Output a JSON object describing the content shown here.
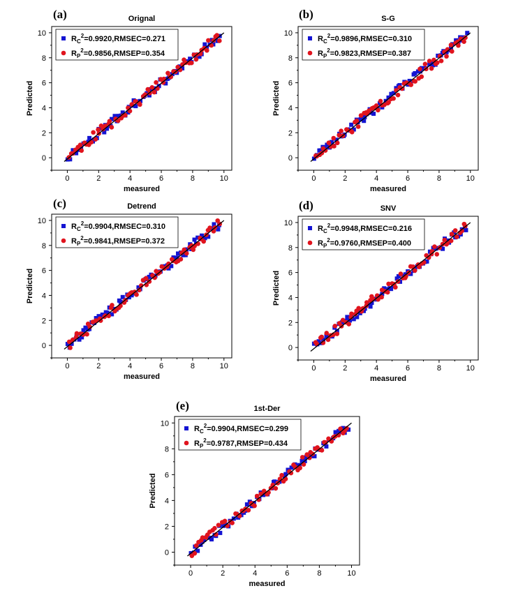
{
  "colors": {
    "calibration": "#1414d2",
    "prediction": "#e0141e",
    "fit_line": "#000000",
    "axes": "#000000"
  },
  "chart_data": [
    {
      "panel_label": "(a)",
      "title": "Orignal",
      "type": "scatter",
      "xlabel": "measured",
      "ylabel": "Predicted",
      "xlim": [
        -1,
        10.5
      ],
      "ylim": [
        -1,
        10.5
      ],
      "xticks": [
        0,
        2,
        4,
        6,
        8,
        10
      ],
      "yticks": [
        0,
        2,
        4,
        6,
        8,
        10
      ],
      "legend": {
        "placement": "top-left",
        "items": [
          {
            "marker": "square",
            "base": "R",
            "sub": "C",
            "sup": "2",
            "rest": "=0.9920,RMSEC=0.271"
          },
          {
            "marker": "circle",
            "base": "R",
            "sub": "P",
            "sup": "2",
            "rest": "=0.9856,RMSEP=0.354"
          }
        ]
      },
      "fit_line": {
        "from": [
          -0.2,
          -0.3
        ],
        "to": [
          10,
          10
        ]
      },
      "seed": 11
    },
    {
      "panel_label": "(b)",
      "title": "S-G",
      "type": "scatter",
      "xlabel": "measured",
      "ylabel": "Predicted",
      "xlim": [
        -1,
        10.5
      ],
      "ylim": [
        -1,
        10.5
      ],
      "xticks": [
        0,
        2,
        4,
        6,
        8,
        10
      ],
      "yticks": [
        0,
        2,
        4,
        6,
        8,
        10
      ],
      "legend": {
        "placement": "top-left",
        "items": [
          {
            "marker": "square",
            "base": "R",
            "sub": "C",
            "sup": "2",
            "rest": "=0.9896,RMSEC=0.310"
          },
          {
            "marker": "circle",
            "base": "R",
            "sub": "P",
            "sup": "2",
            "rest": "=0.9823,RMSEP=0.387"
          }
        ]
      },
      "fit_line": {
        "from": [
          -0.2,
          -0.3
        ],
        "to": [
          10,
          10
        ]
      },
      "seed": 23
    },
    {
      "panel_label": "(c)",
      "title": "Detrend",
      "type": "scatter",
      "xlabel": "measured",
      "ylabel": "Predicted",
      "xlim": [
        -1,
        10.5
      ],
      "ylim": [
        -1,
        10.5
      ],
      "xticks": [
        0,
        2,
        4,
        6,
        8,
        10
      ],
      "yticks": [
        0,
        2,
        4,
        6,
        8,
        10
      ],
      "legend": {
        "placement": "top-left",
        "items": [
          {
            "marker": "square",
            "base": "R",
            "sub": "C",
            "sup": "2",
            "rest": "=0.9904,RMSEC=0.310"
          },
          {
            "marker": "circle",
            "base": "R",
            "sub": "P",
            "sup": "2",
            "rest": "=0.9841,RMSEP=0.372"
          }
        ]
      },
      "fit_line": {
        "from": [
          -0.2,
          -0.3
        ],
        "to": [
          10,
          10
        ]
      },
      "seed": 37
    },
    {
      "panel_label": "(d)",
      "title": "SNV",
      "type": "scatter",
      "xlabel": "measured",
      "ylabel": "Predicted",
      "xlim": [
        -1,
        10.5
      ],
      "ylim": [
        -1,
        10.5
      ],
      "xticks": [
        0,
        2,
        4,
        6,
        8,
        10
      ],
      "yticks": [
        0,
        2,
        4,
        6,
        8,
        10
      ],
      "legend": {
        "placement": "top-left",
        "items": [
          {
            "marker": "square",
            "base": "R",
            "sub": "C",
            "sup": "2",
            "rest": "=0.9948,RMSEC=0.216"
          },
          {
            "marker": "circle",
            "base": "R",
            "sub": "P",
            "sup": "2",
            "rest": "=0.9760,RMSEP=0.400"
          }
        ]
      },
      "fit_line": {
        "from": [
          -0.2,
          -0.3
        ],
        "to": [
          10,
          10
        ]
      },
      "seed": 51
    },
    {
      "panel_label": "(e)",
      "title": "1st-Der",
      "type": "scatter",
      "xlabel": "measured",
      "ylabel": "Predicted",
      "xlim": [
        -1,
        10.5
      ],
      "ylim": [
        -1,
        10.5
      ],
      "xticks": [
        0,
        2,
        4,
        6,
        8,
        10
      ],
      "yticks": [
        0,
        2,
        4,
        6,
        8,
        10
      ],
      "legend": {
        "placement": "top-left",
        "items": [
          {
            "marker": "square",
            "base": "R",
            "sub": "C",
            "sup": "2",
            "rest": "=0.9904,RMSEC=0.299"
          },
          {
            "marker": "circle",
            "base": "R",
            "sub": "P",
            "sup": "2",
            "rest": "=0.9787,RMSEP=0.434"
          }
        ]
      },
      "fit_line": {
        "from": [
          -0.2,
          -0.3
        ],
        "to": [
          10,
          10
        ]
      },
      "seed": 67
    }
  ]
}
